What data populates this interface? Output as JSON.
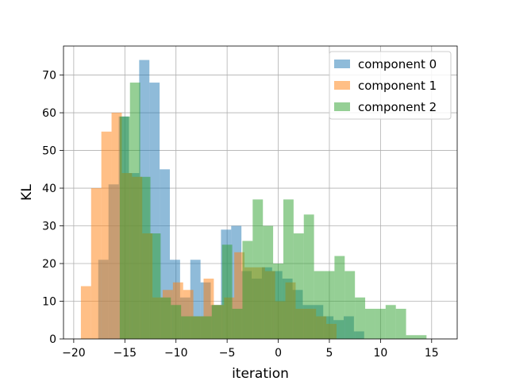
{
  "chart_data": {
    "type": "histogram",
    "xlabel": "iteration",
    "ylabel": "KL",
    "xlim": [
      -21,
      17.5
    ],
    "ylim": [
      0,
      77.7
    ],
    "xticks": [
      -20,
      -15,
      -10,
      -5,
      0,
      5,
      10,
      15
    ],
    "yticks": [
      0,
      10,
      20,
      30,
      40,
      50,
      60,
      70
    ],
    "grid": true,
    "legend_position": "top-right",
    "series": [
      {
        "name": "component 0",
        "color": "#1f77b4",
        "alpha": 0.5,
        "bin_start": -17.6,
        "bin_width": 1.0,
        "counts": [
          21,
          41,
          59,
          44,
          74,
          68,
          45,
          21,
          11,
          21,
          15,
          9,
          29,
          30,
          18,
          16,
          19,
          18,
          16,
          13,
          9,
          9,
          6,
          5,
          6,
          2
        ]
      },
      {
        "name": "component 1",
        "color": "#ff7f0e",
        "alpha": 0.5,
        "bin_start": -19.3,
        "bin_width": 1.0,
        "counts": [
          14,
          40,
          55,
          60,
          44,
          43,
          28,
          11,
          13,
          15,
          13,
          6,
          16,
          9,
          11,
          23,
          19,
          19,
          18,
          10,
          15,
          8,
          8,
          6,
          4
        ]
      },
      {
        "name": "component 2",
        "color": "#2ca02c",
        "alpha": 0.5,
        "bin_start": -15.5,
        "bin_width": 1.0,
        "counts": [
          59,
          68,
          43,
          28,
          11,
          9,
          6,
          6,
          6,
          9,
          25,
          8,
          26,
          37,
          30,
          20,
          37,
          28,
          33,
          18,
          18,
          22,
          18,
          11,
          8,
          8,
          9,
          8,
          1,
          1
        ]
      }
    ]
  }
}
